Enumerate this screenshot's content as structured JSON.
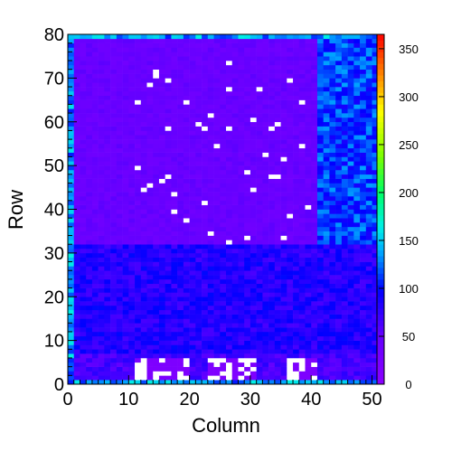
{
  "chart_data": {
    "type": "heatmap",
    "title": "",
    "xlabel": "Column",
    "ylabel": "Row",
    "xlim": [
      0,
      52
    ],
    "ylim": [
      0,
      80
    ],
    "x_ticks": [
      0,
      10,
      20,
      30,
      40,
      50
    ],
    "y_ticks": [
      0,
      10,
      20,
      30,
      40,
      50,
      60,
      70,
      80
    ],
    "colorbar": {
      "range": [
        0,
        365
      ],
      "ticks": [
        0,
        50,
        100,
        150,
        200,
        250,
        300,
        350
      ],
      "palette": "rainbow (violet-blue-cyan-green-yellow-red)"
    },
    "n_columns": 52,
    "n_rows": 80,
    "empty_cell_color": "#ffffff",
    "regions": [
      {
        "description": "frame border",
        "cols": [
          0,
          52
        ],
        "rows": [
          0,
          80
        ],
        "value": 135
      },
      {
        "description": "top-left block",
        "cols": [
          1,
          41
        ],
        "rows": [
          32,
          79
        ],
        "value": 45
      },
      {
        "description": "top-right block",
        "cols": [
          41,
          51
        ],
        "rows": [
          32,
          79
        ],
        "value": 112
      },
      {
        "description": "bottom band",
        "cols": [
          1,
          51
        ],
        "rows": [
          1,
          32
        ],
        "value": 82
      },
      {
        "description": "low row",
        "cols": [
          1,
          51
        ],
        "rows": [
          1,
          7
        ],
        "value": 65
      },
      {
        "description": "chip pad 1",
        "cols": [
          11,
          20
        ],
        "rows": [
          1,
          6
        ],
        "value": 20
      },
      {
        "description": "chip pad 2",
        "cols": [
          23,
          31
        ],
        "rows": [
          1,
          6
        ],
        "value": 20
      },
      {
        "description": "chip pad 3",
        "cols": [
          36,
          41
        ],
        "rows": [
          1,
          6
        ],
        "value": 20
      }
    ]
  }
}
